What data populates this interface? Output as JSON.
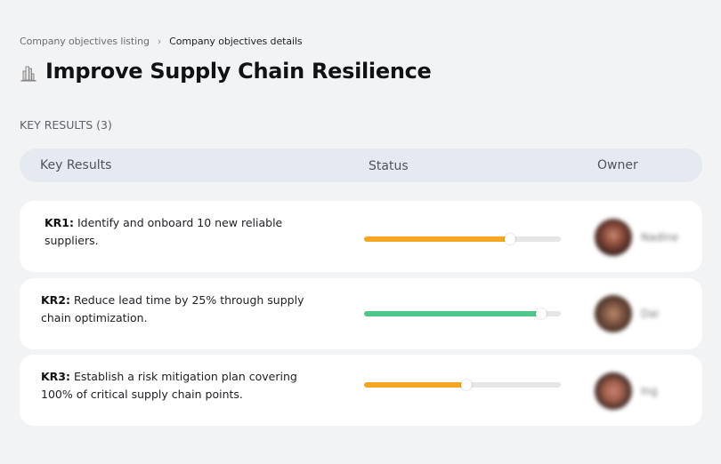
{
  "breadcrumb": {
    "parent": "Company objectives listing",
    "separator": "›",
    "current": "Company objectives details"
  },
  "objective": {
    "icon": "buildings-icon",
    "title": "Improve Supply Chain Resilience"
  },
  "key_results_section": {
    "label": "KEY RESULTS (3)",
    "count": 3
  },
  "table": {
    "columns": [
      "Key Results",
      "Status",
      "Owner"
    ],
    "rows": [
      {
        "id": "KR1:",
        "text": " Identify and onboard 10 new reliable suppliers.",
        "progress": 74,
        "progress_color": "#f5a623",
        "owner_name": "Nadine",
        "avatar_gradient": "radial-gradient(circle at 50% 45%, #c98a72 0%, #8a4a3a 35%, #3b2420 70%, #6d4a40 100%)"
      },
      {
        "id": "KR2:",
        "text": " Reduce lead time by 25% through supply chain optimization.",
        "progress": 90,
        "progress_color": "#4fc78b",
        "owner_name": "Dai",
        "avatar_gradient": "radial-gradient(circle at 50% 50%, #b9876a 0%, #7a5240 40%, #3d2a22 75%, #8a6a5a 100%)"
      },
      {
        "id": "KR3:",
        "text": " Establish a risk mitigation plan covering 100% of critical supply chain points.",
        "progress": 52,
        "progress_color": "#f5a623",
        "owner_name": "Ing",
        "avatar_gradient": "radial-gradient(circle at 50% 50%, #c98570 0%, #a0604e 35%, #3a2622 72%, #7a5a50 100%)"
      }
    ]
  },
  "colors": {
    "background": "#f2f3f5",
    "header_bg": "#e5e9f0",
    "card_bg": "#ffffff",
    "progress_track": "#e6e6e6",
    "warning": "#f5a623",
    "success": "#4fc78b"
  }
}
